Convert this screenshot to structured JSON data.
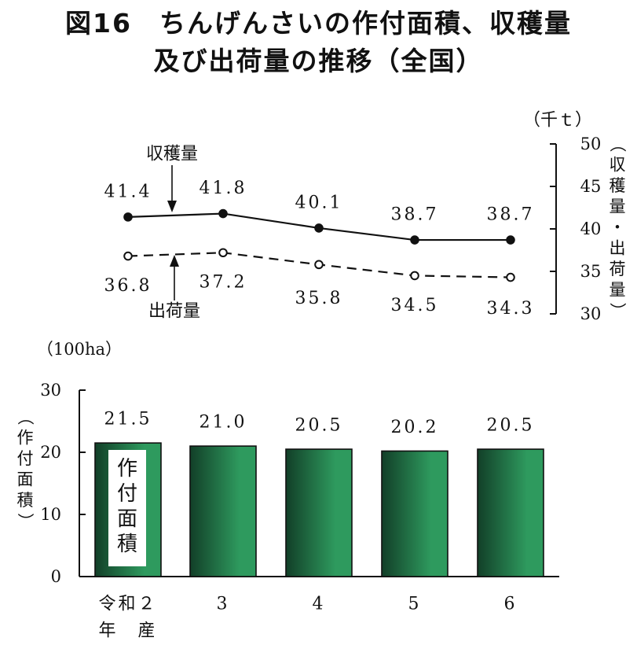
{
  "title": [
    "図16　ちんげんさいの作付面積、収穫量",
    "及び出荷量の推移（全国）"
  ],
  "chart_data": [
    {
      "type": "line",
      "categories": [
        "令和２年　産",
        "3",
        "4",
        "5",
        "6"
      ],
      "series": [
        {
          "name": "収穫量",
          "values": [
            41.4,
            41.8,
            40.1,
            38.7,
            38.7
          ],
          "marker": "filled",
          "line": "solid"
        },
        {
          "name": "出荷量",
          "values": [
            36.8,
            37.2,
            35.8,
            34.5,
            34.3
          ],
          "marker": "open",
          "line": "dashed"
        }
      ],
      "y_unit": "（千ｔ）",
      "ylabel": "（収穫量・出荷量）",
      "ylim": [
        30,
        50
      ],
      "yticks": [
        30,
        35,
        40,
        45,
        50
      ],
      "grid": false
    },
    {
      "type": "bar",
      "categories": [
        "令和２年　産",
        "3",
        "4",
        "5",
        "6"
      ],
      "series": [
        {
          "name": "作付面積",
          "values": [
            21.5,
            21.0,
            20.5,
            20.2,
            20.5
          ]
        }
      ],
      "y_unit": "（100ha）",
      "ylabel": "（作付面積）",
      "ylim": [
        0,
        30
      ],
      "yticks": [
        0,
        10,
        20,
        30
      ],
      "bar_color": "#2e9a5e",
      "bar_dark": "#123f28",
      "grid": false
    }
  ],
  "x_labels": [
    [
      "令和２",
      "年　産"
    ],
    [
      "3"
    ],
    [
      "4"
    ],
    [
      "5"
    ],
    [
      "6"
    ]
  ]
}
